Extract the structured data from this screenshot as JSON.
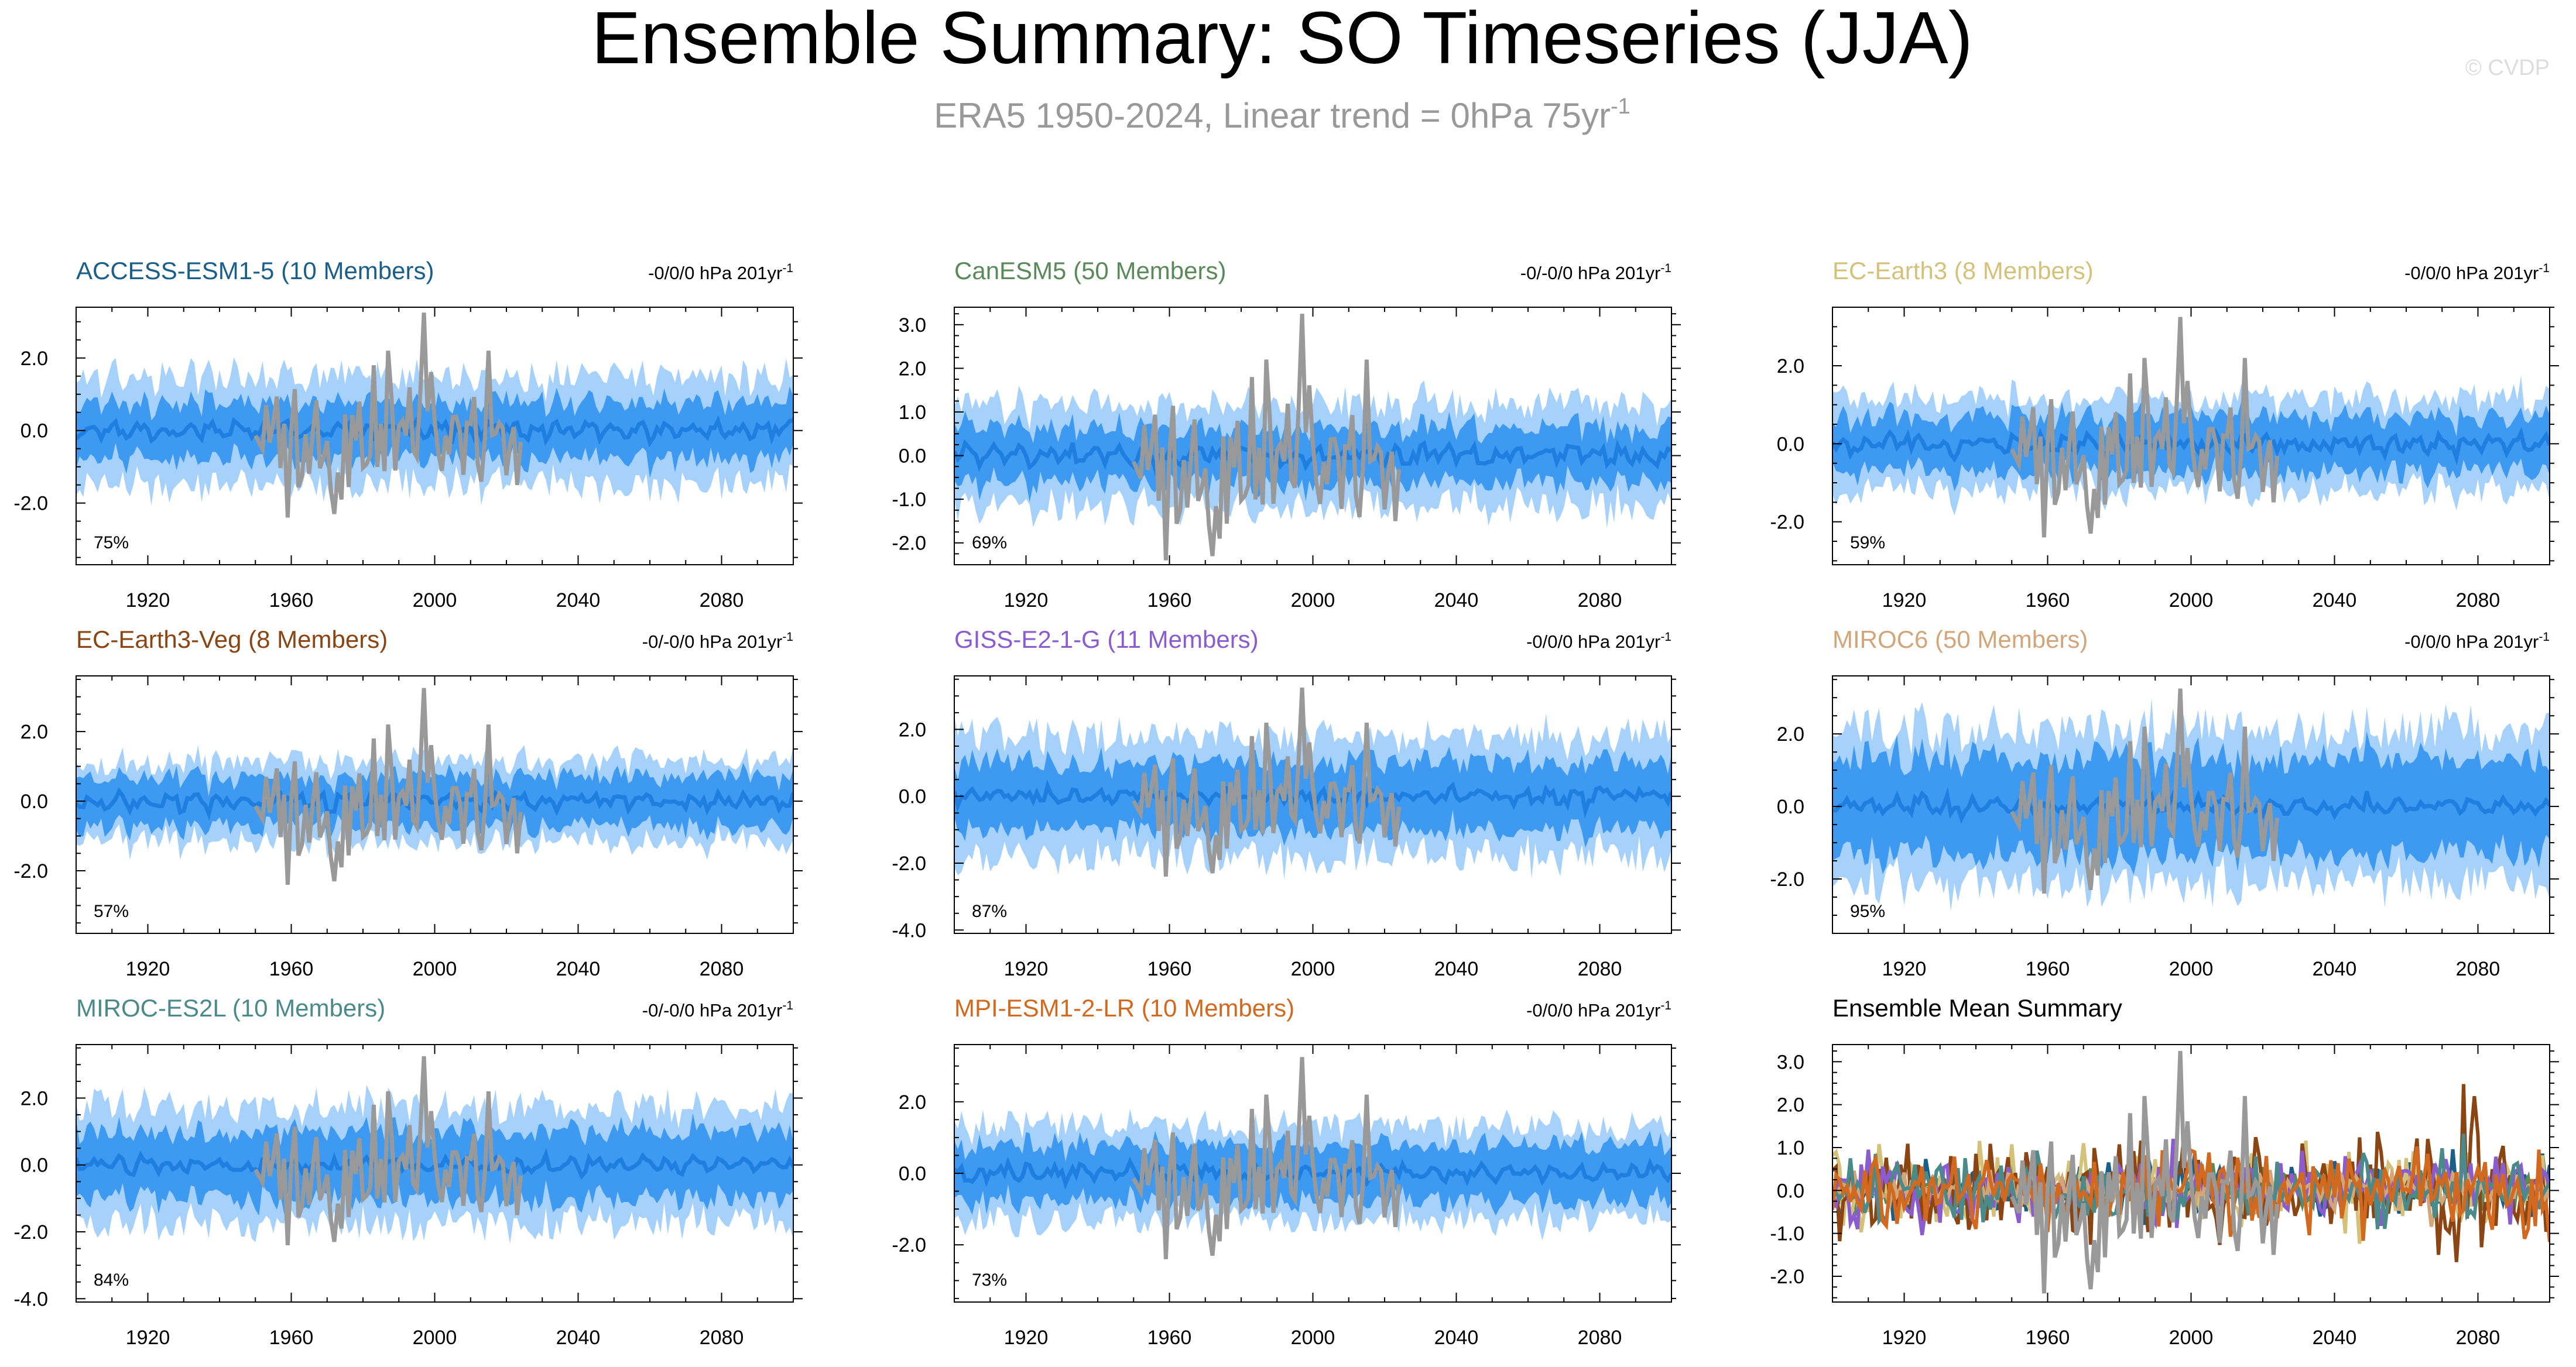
{
  "title": "Ensemble Summary: SO Timeseries (JJA)",
  "subtitle": "ERA5 1950-2024, Linear trend = 0hPa 75yr",
  "subtitle_superscript": "-1",
  "watermark": "© CVDP",
  "colors": {
    "band_outer": "#a6d1fb",
    "band_inner": "#3d9af0",
    "ensemble_mean": "#1f7fe0",
    "observations": "#999999",
    "axis": "#000000"
  },
  "chart_data": [
    {
      "type": "line",
      "title": "ACCESS-ESM1-5 (10 Members)",
      "title_color": "#1a5f8a",
      "trend_label": "-0/0/0 hPa 201yr",
      "trend_superscript": "-1",
      "percent_label": "75%",
      "x_range": [
        1900,
        2100
      ],
      "x_ticks": [
        1920,
        1960,
        2000,
        2040,
        2080
      ],
      "x_tick_labels": [
        "1920",
        "1960",
        "2000",
        "2040",
        "2080"
      ],
      "ylim": [
        -3.7,
        3.4
      ],
      "y_ticks": [
        -2.0,
        0.0,
        2.0
      ],
      "y_tick_labels": [
        "-2.0",
        "0.0",
        "2.0"
      ],
      "band_inner_halfwidth": 1.0,
      "band_outer_halfwidth": 1.8,
      "obs_range": [
        1950,
        2024
      ],
      "seed": 11
    },
    {
      "type": "line",
      "title": "CanESM5 (50 Members)",
      "title_color": "#5a8a5a",
      "trend_label": "-0/-0/0 hPa 201yr",
      "trend_superscript": "-1",
      "percent_label": "69%",
      "x_range": [
        1900,
        2100
      ],
      "x_ticks": [
        1920,
        1960,
        2000,
        2040,
        2080
      ],
      "x_tick_labels": [
        "1920",
        "1960",
        "2000",
        "2040",
        "2080"
      ],
      "ylim": [
        -2.5,
        3.4
      ],
      "y_ticks": [
        -2.0,
        -1.0,
        0.0,
        1.0,
        2.0,
        3.0
      ],
      "y_tick_labels": [
        "-2.0",
        "-1.0",
        "0.0",
        "1.0",
        "2.0",
        "3.0"
      ],
      "band_inner_halfwidth": 0.8,
      "band_outer_halfwidth": 1.4,
      "obs_range": [
        1950,
        2024
      ],
      "seed": 23
    },
    {
      "type": "line",
      "title": "EC-Earth3 (8 Members)",
      "title_color": "#d4c27a",
      "trend_label": "-0/0/0 hPa 201yr",
      "trend_superscript": "-1",
      "percent_label": "59%",
      "x_range": [
        1900,
        2100
      ],
      "x_ticks": [
        1920,
        1960,
        2000,
        2040,
        2080
      ],
      "x_tick_labels": [
        "1920",
        "1960",
        "2000",
        "2040",
        "2080"
      ],
      "ylim": [
        -3.1,
        3.5
      ],
      "y_ticks": [
        -2.0,
        0.0,
        2.0
      ],
      "y_tick_labels": [
        "-2.0",
        "0.0",
        "2.0"
      ],
      "band_inner_halfwidth": 0.9,
      "band_outer_halfwidth": 1.4,
      "obs_range": [
        1950,
        2024
      ],
      "seed": 37
    },
    {
      "type": "line",
      "title": "EC-Earth3-Veg (8 Members)",
      "title_color": "#8b4513",
      "trend_label": "-0/-0/0 hPa 201yr",
      "trend_superscript": "-1",
      "percent_label": "57%",
      "x_range": [
        1900,
        2100
      ],
      "x_ticks": [
        1920,
        1960,
        2000,
        2040,
        2080
      ],
      "x_tick_labels": [
        "1920",
        "1960",
        "2000",
        "2040",
        "2080"
      ],
      "ylim": [
        -3.8,
        3.6
      ],
      "y_ticks": [
        -2.0,
        0.0,
        2.0
      ],
      "y_tick_labels": [
        "-2.0",
        "0.0",
        "2.0"
      ],
      "band_inner_halfwidth": 0.9,
      "band_outer_halfwidth": 1.4,
      "obs_range": [
        1950,
        2024
      ],
      "seed": 41
    },
    {
      "type": "line",
      "title": "GISS-E2-1-G (11 Members)",
      "title_color": "#8a5ccf",
      "trend_label": "-0/0/0 hPa 201yr",
      "trend_superscript": "-1",
      "percent_label": "87%",
      "x_range": [
        1900,
        2100
      ],
      "x_ticks": [
        1920,
        1960,
        2000,
        2040,
        2080
      ],
      "x_tick_labels": [
        "1920",
        "1960",
        "2000",
        "2040",
        "2080"
      ],
      "ylim": [
        -4.1,
        3.6
      ],
      "y_ticks": [
        -4.0,
        -2.0,
        0.0,
        2.0
      ],
      "y_tick_labels": [
        "-4.0",
        "-2.0",
        "0.0",
        "2.0"
      ],
      "band_inner_halfwidth": 1.3,
      "band_outer_halfwidth": 2.2,
      "obs_range": [
        1950,
        2024
      ],
      "seed": 53
    },
    {
      "type": "line",
      "title": "MIROC6 (50 Members)",
      "title_color": "#d2a679",
      "trend_label": "-0/0/0 hPa 201yr",
      "trend_superscript": "-1",
      "percent_label": "95%",
      "x_range": [
        1900,
        2100
      ],
      "x_ticks": [
        1920,
        1960,
        2000,
        2040,
        2080
      ],
      "x_tick_labels": [
        "1920",
        "1960",
        "2000",
        "2040",
        "2080"
      ],
      "ylim": [
        -3.5,
        3.6
      ],
      "y_ticks": [
        -2.0,
        0.0,
        2.0
      ],
      "y_tick_labels": [
        "-2.0",
        "0.0",
        "2.0"
      ],
      "band_inner_halfwidth": 1.7,
      "band_outer_halfwidth": 2.6,
      "obs_range": [
        1950,
        2024
      ],
      "seed": 67
    },
    {
      "type": "line",
      "title": "MIROC-ES2L (10 Members)",
      "title_color": "#4a8a8a",
      "trend_label": "-0/-0/0 hPa 201yr",
      "trend_superscript": "-1",
      "percent_label": "84%",
      "x_range": [
        1900,
        2100
      ],
      "x_ticks": [
        1920,
        1960,
        2000,
        2040,
        2080
      ],
      "x_tick_labels": [
        "1920",
        "1960",
        "2000",
        "2040",
        "2080"
      ],
      "ylim": [
        -4.1,
        3.6
      ],
      "y_ticks": [
        -4.0,
        -2.0,
        0.0,
        2.0
      ],
      "y_tick_labels": [
        "-4.0",
        "-2.0",
        "0.0",
        "2.0"
      ],
      "band_inner_halfwidth": 1.3,
      "band_outer_halfwidth": 2.1,
      "obs_range": [
        1950,
        2024
      ],
      "seed": 79
    },
    {
      "type": "line",
      "title": "MPI-ESM1-2-LR (10 Members)",
      "title_color": "#d2691e",
      "trend_label": "-0/0/0 hPa 201yr",
      "trend_superscript": "-1",
      "percent_label": "73%",
      "x_range": [
        1900,
        2100
      ],
      "x_ticks": [
        1920,
        1960,
        2000,
        2040,
        2080
      ],
      "x_tick_labels": [
        "1920",
        "1960",
        "2000",
        "2040",
        "2080"
      ],
      "ylim": [
        -3.6,
        3.6
      ],
      "y_ticks": [
        -2.0,
        0.0,
        2.0
      ],
      "y_tick_labels": [
        "-2.0",
        "0.0",
        "2.0"
      ],
      "band_inner_halfwidth": 1.0,
      "band_outer_halfwidth": 1.6,
      "obs_range": [
        1950,
        2024
      ],
      "seed": 83
    },
    {
      "type": "line",
      "title": "Ensemble Mean Summary",
      "title_color": "#000000",
      "percent_label": "",
      "x_range": [
        1900,
        2100
      ],
      "x_ticks": [
        1920,
        1960,
        2000,
        2040,
        2080
      ],
      "x_tick_labels": [
        "1920",
        "1960",
        "2000",
        "2040",
        "2080"
      ],
      "ylim": [
        -2.6,
        3.4
      ],
      "y_ticks": [
        -2.0,
        -1.0,
        0.0,
        1.0,
        2.0,
        3.0
      ],
      "y_tick_labels": [
        "-2.0",
        "-1.0",
        "0.0",
        "1.0",
        "2.0",
        "3.0"
      ],
      "obs_range": [
        1950,
        2024
      ],
      "seed": 97,
      "series": [
        {
          "name": "ACCESS-ESM1-5",
          "color": "#1a5f8a",
          "amplitude": 0.35
        },
        {
          "name": "CanESM5",
          "color": "#5a8a5a",
          "amplitude": 0.25
        },
        {
          "name": "EC-Earth3",
          "color": "#d4c27a",
          "amplitude": 0.45
        },
        {
          "name": "EC-Earth3-Veg",
          "color": "#8b4513",
          "amplitude": 0.55
        },
        {
          "name": "GISS-E2-1-G",
          "color": "#8a5ccf",
          "amplitude": 0.35
        },
        {
          "name": "MIROC6",
          "color": "#d2a679",
          "amplitude": 0.2
        },
        {
          "name": "MIROC-ES2L",
          "color": "#4a8a8a",
          "amplitude": 0.4
        },
        {
          "name": "MPI-ESM1-2-LR",
          "color": "#d2691e",
          "amplitude": 0.45
        }
      ]
    }
  ]
}
